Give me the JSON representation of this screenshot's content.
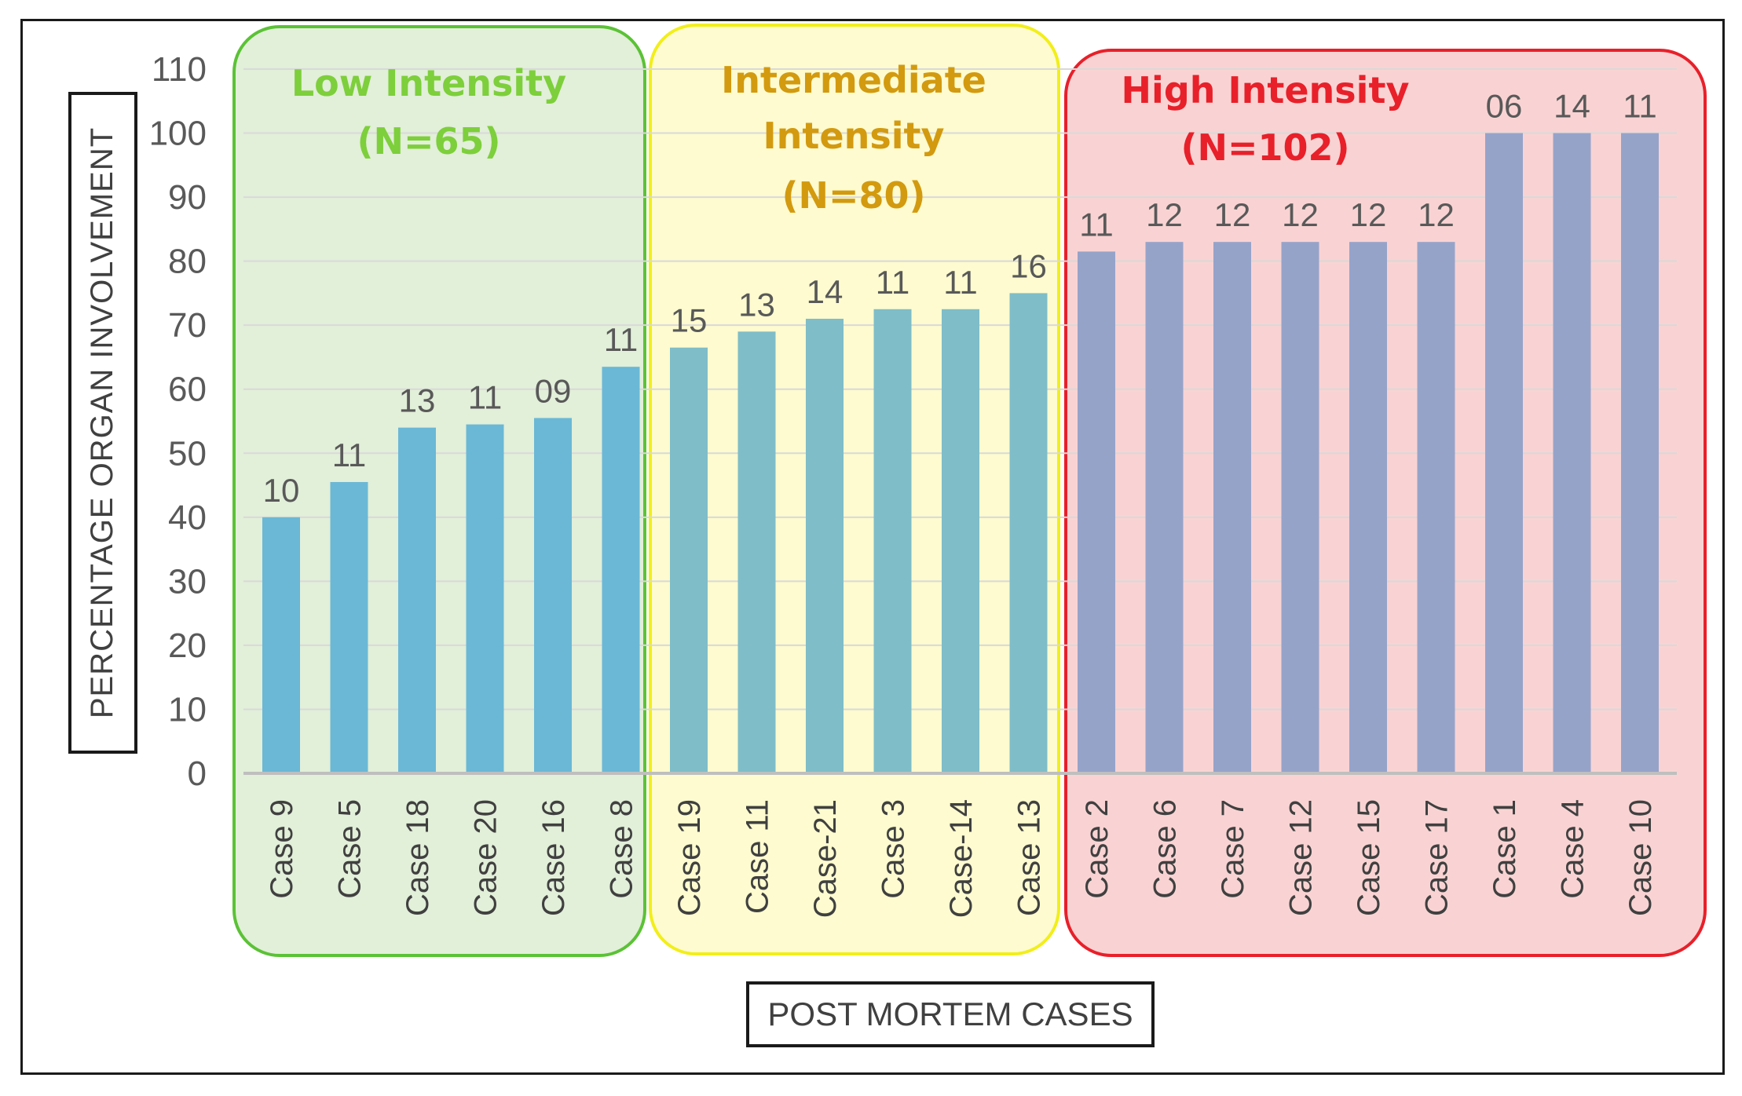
{
  "chart_data": {
    "type": "bar",
    "title": "",
    "xlabel": "POST MORTEM CASES",
    "ylabel": "PERCENTAGE ORGAN INVOLVEMENT",
    "ylim": [
      0,
      110
    ],
    "yticks": [
      0,
      10,
      20,
      30,
      40,
      50,
      60,
      70,
      80,
      90,
      100,
      110
    ],
    "grid": true,
    "groups": [
      {
        "title_lines": [
          "Low Intensity",
          "(N=65)"
        ],
        "text_color": "#7dcf3b",
        "border_color": "#5bc236",
        "fill_color": "#e2efd9",
        "bar_color": "#6ab8d6",
        "categories": [
          "Case 9",
          "Case 5",
          "Case 18",
          "Case 20",
          "Case 16",
          "Case 8"
        ],
        "values": [
          40,
          45.5,
          54,
          54.5,
          55.5,
          63.5
        ],
        "labels": [
          "10",
          "11",
          "13",
          "11",
          "09",
          "11"
        ]
      },
      {
        "title_lines": [
          "Intermediate",
          "Intensity",
          "(N=80)"
        ],
        "text_color": "#d39a0f",
        "border_color": "#f2ee1a",
        "fill_color": "#fdfbcf",
        "bar_color": "#7fbdc8",
        "categories": [
          "Case 19",
          "Case 11",
          "Case-21",
          "Case 3",
          "Case-14",
          "Case 13"
        ],
        "values": [
          66.5,
          69,
          71,
          72.5,
          72.5,
          75
        ],
        "labels": [
          "15",
          "13",
          "14",
          "11",
          "11",
          "16"
        ]
      },
      {
        "title_lines": [
          "High Intensity",
          "(N=102)"
        ],
        "text_color": "#e8202a",
        "border_color": "#e8202a",
        "fill_color": "#f9d3d3",
        "bar_color": "#96a3c9",
        "categories": [
          "Case 2",
          "Case 6",
          "Case 7",
          "Case 12",
          "Case 15",
          "Case 17",
          "Case 1",
          "Case 4",
          "Case 10"
        ],
        "values": [
          81.5,
          83,
          83,
          83,
          83,
          83,
          100,
          100,
          100
        ],
        "labels": [
          "11",
          "12",
          "12",
          "12",
          "12",
          "12",
          "06",
          "14",
          "11"
        ]
      }
    ]
  }
}
